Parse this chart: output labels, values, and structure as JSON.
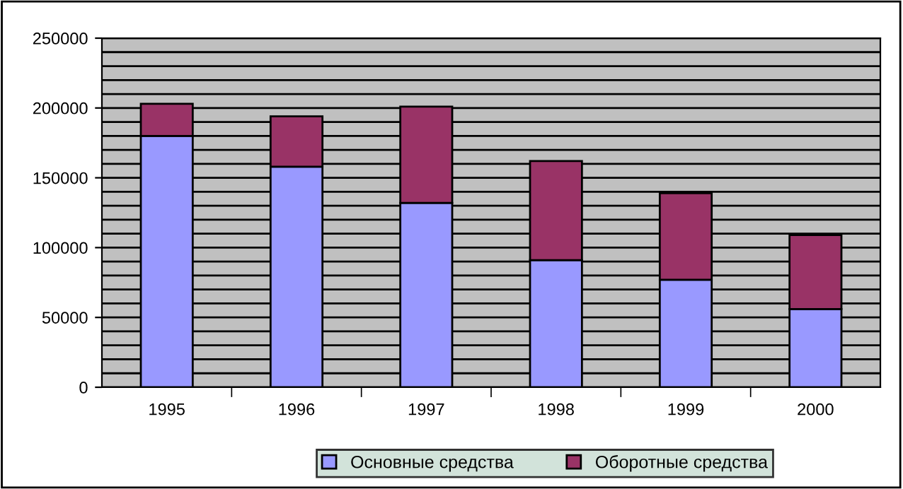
{
  "chart_data": {
    "type": "bar",
    "stacked": true,
    "categories": [
      "1995",
      "1996",
      "1997",
      "1998",
      "1999",
      "2000"
    ],
    "series": [
      {
        "name": "Основные средства",
        "color": "#9999ff",
        "values": [
          180000,
          158000,
          132000,
          91000,
          77000,
          56000
        ]
      },
      {
        "name": "Оборотные средства",
        "color": "#993366",
        "values": [
          23000,
          36000,
          69000,
          71000,
          62000,
          53000
        ]
      }
    ],
    "ylim": [
      0,
      250000
    ],
    "yticks": [
      0,
      50000,
      100000,
      150000,
      200000,
      250000
    ],
    "grid": "y",
    "legend": "bottom"
  }
}
